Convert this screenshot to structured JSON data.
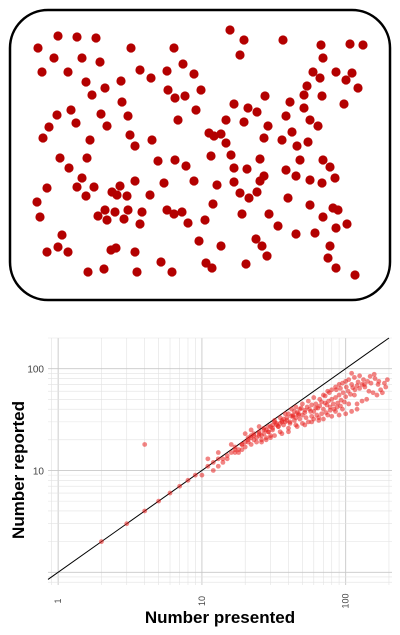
{
  "stimulus": {
    "dot_color": "#b30000",
    "border_color": "#000000",
    "dots": [
      [
        38,
        48
      ],
      [
        58,
        36
      ],
      [
        77,
        37
      ],
      [
        96,
        38
      ],
      [
        82,
        58
      ],
      [
        54,
        58
      ],
      [
        42,
        72
      ],
      [
        68,
        72
      ],
      [
        100,
        62
      ],
      [
        131,
        48
      ],
      [
        174,
        48
      ],
      [
        183,
        64
      ],
      [
        194,
        74
      ],
      [
        167,
        71
      ],
      [
        151,
        78
      ],
      [
        140,
        70
      ],
      [
        121,
        81
      ],
      [
        105,
        88
      ],
      [
        92,
        95
      ],
      [
        86,
        82
      ],
      [
        71,
        110
      ],
      [
        57,
        115
      ],
      [
        49,
        127
      ],
      [
        76,
        123
      ],
      [
        101,
        114
      ],
      [
        107,
        126
      ],
      [
        43,
        138
      ],
      [
        122,
        102
      ],
      [
        128,
        116
      ],
      [
        130,
        135
      ],
      [
        135,
        146
      ],
      [
        152,
        140
      ],
      [
        178,
        120
      ],
      [
        201,
        90
      ],
      [
        185,
        96
      ],
      [
        196,
        110
      ],
      [
        175,
        98
      ],
      [
        168,
        90
      ],
      [
        230,
        30
      ],
      [
        244,
        40
      ],
      [
        240,
        55
      ],
      [
        283,
        40
      ],
      [
        321,
        45
      ],
      [
        323,
        58
      ],
      [
        363,
        45
      ],
      [
        350,
        44
      ],
      [
        313,
        72
      ],
      [
        307,
        86
      ],
      [
        320,
        78
      ],
      [
        336,
        72
      ],
      [
        322,
        96
      ],
      [
        304,
        108
      ],
      [
        310,
        120
      ],
      [
        290,
        102
      ],
      [
        286,
        116
      ],
      [
        265,
        96
      ],
      [
        257,
        112
      ],
      [
        248,
        108
      ],
      [
        234,
        104
      ],
      [
        226,
        120
      ],
      [
        244,
        122
      ],
      [
        268,
        126
      ],
      [
        304,
        95
      ],
      [
        344,
        104
      ],
      [
        358,
        88
      ],
      [
        352,
        73
      ],
      [
        346,
        80
      ],
      [
        318,
        126
      ],
      [
        308,
        142
      ],
      [
        297,
        146
      ],
      [
        292,
        132
      ],
      [
        282,
        140
      ],
      [
        286,
        170
      ],
      [
        300,
        160
      ],
      [
        323,
        160
      ],
      [
        330,
        167
      ],
      [
        335,
        178
      ],
      [
        322,
        183
      ],
      [
        310,
        180
      ],
      [
        296,
        176
      ],
      [
        288,
        198
      ],
      [
        310,
        205
      ],
      [
        323,
        217
      ],
      [
        338,
        210
      ],
      [
        347,
        224
      ],
      [
        336,
        228
      ],
      [
        330,
        246
      ],
      [
        328,
        258
      ],
      [
        336,
        268
      ],
      [
        355,
        275
      ],
      [
        90,
        140
      ],
      [
        87,
        158
      ],
      [
        60,
        158
      ],
      [
        69,
        168
      ],
      [
        82,
        178
      ],
      [
        94,
        187
      ],
      [
        86,
        196
      ],
      [
        77,
        187
      ],
      [
        47,
        188
      ],
      [
        37,
        202
      ],
      [
        40,
        217
      ],
      [
        62,
        235
      ],
      [
        58,
        247
      ],
      [
        47,
        252
      ],
      [
        68,
        252
      ],
      [
        98,
        216
      ],
      [
        105,
        210
      ],
      [
        112,
        192
      ],
      [
        120,
        186
      ],
      [
        127,
        196
      ],
      [
        135,
        181
      ],
      [
        150,
        195
      ],
      [
        164,
        183
      ],
      [
        158,
        161
      ],
      [
        175,
        160
      ],
      [
        186,
        166
      ],
      [
        194,
        181
      ],
      [
        182,
        212
      ],
      [
        188,
        223
      ],
      [
        205,
        220
      ],
      [
        213,
        204
      ],
      [
        217,
        185
      ],
      [
        234,
        182
      ],
      [
        240,
        193
      ],
      [
        257,
        192
      ],
      [
        260,
        181
      ],
      [
        264,
        176
      ],
      [
        249,
        198
      ],
      [
        242,
        214
      ],
      [
        269,
        214
      ],
      [
        278,
        226
      ],
      [
        256,
        239
      ],
      [
        262,
        246
      ],
      [
        246,
        264
      ],
      [
        267,
        256
      ],
      [
        296,
        234
      ],
      [
        315,
        233
      ],
      [
        333,
        208
      ],
      [
        231,
        155
      ],
      [
        247,
        169
      ],
      [
        260,
        159
      ],
      [
        234,
        168
      ],
      [
        211,
        156
      ],
      [
        214,
        136
      ],
      [
        209,
        133
      ],
      [
        221,
        134
      ],
      [
        226,
        143
      ],
      [
        167,
        210
      ],
      [
        174,
        214
      ],
      [
        142,
        212
      ],
      [
        128,
        210
      ],
      [
        124,
        219
      ],
      [
        107,
        220
      ],
      [
        115,
        212
      ],
      [
        111,
        250
      ],
      [
        116,
        248
      ],
      [
        88,
        272
      ],
      [
        104,
        269
      ],
      [
        135,
        252
      ],
      [
        137,
        272
      ],
      [
        161,
        262
      ],
      [
        172,
        272
      ],
      [
        199,
        241
      ],
      [
        206,
        263
      ],
      [
        212,
        268
      ],
      [
        140,
        224
      ],
      [
        117,
        195
      ],
      [
        264,
        138
      ],
      [
        221,
        246
      ]
    ]
  },
  "chart_data": {
    "type": "scatter",
    "title": "",
    "xlabel": "Number presented",
    "ylabel": "Number reported",
    "x_scale": "log",
    "y_scale": "log",
    "xlim": [
      0.85,
      210
    ],
    "ylim": [
      0.75,
      200
    ],
    "x_tick_labels": [
      "1",
      "10",
      "100"
    ],
    "y_tick_labels": [
      "10",
      "100"
    ],
    "reference_line": "y = x",
    "grid": true,
    "point_color": "#e8211f",
    "line_color": "#000000",
    "series": [
      {
        "values": [
          [
            2,
            2
          ],
          [
            3,
            3
          ],
          [
            4,
            4
          ],
          [
            5,
            5
          ],
          [
            6,
            6
          ],
          [
            4,
            18
          ],
          [
            7,
            7
          ],
          [
            8,
            8
          ],
          [
            9,
            9
          ],
          [
            10,
            9
          ],
          [
            11,
            11
          ],
          [
            12,
            12
          ],
          [
            11,
            13
          ],
          [
            12,
            10
          ],
          [
            13,
            13
          ],
          [
            14,
            12
          ],
          [
            13,
            15
          ],
          [
            15,
            14
          ],
          [
            16,
            15
          ],
          [
            17,
            17
          ],
          [
            18,
            16
          ],
          [
            16,
            18
          ],
          [
            19,
            18
          ],
          [
            20,
            17
          ],
          [
            21,
            20
          ],
          [
            20,
            23
          ],
          [
            22,
            21
          ],
          [
            23,
            22
          ],
          [
            24,
            21
          ],
          [
            25,
            23
          ],
          [
            22,
            25
          ],
          [
            26,
            22
          ],
          [
            27,
            26
          ],
          [
            28,
            25
          ],
          [
            29,
            24
          ],
          [
            30,
            27
          ],
          [
            25,
            27
          ],
          [
            31,
            26
          ],
          [
            32,
            30
          ],
          [
            33,
            28
          ],
          [
            34,
            27
          ],
          [
            35,
            29
          ],
          [
            36,
            31
          ],
          [
            37,
            32
          ],
          [
            38,
            30
          ],
          [
            39,
            33
          ],
          [
            40,
            36
          ],
          [
            41,
            30
          ],
          [
            42,
            34
          ],
          [
            43,
            35
          ],
          [
            44,
            38
          ],
          [
            45,
            33
          ],
          [
            46,
            37
          ],
          [
            47,
            36
          ],
          [
            48,
            40
          ],
          [
            49,
            41
          ],
          [
            50,
            35
          ],
          [
            52,
            39
          ],
          [
            54,
            42
          ],
          [
            56,
            40
          ],
          [
            58,
            44
          ],
          [
            60,
            38
          ],
          [
            62,
            45
          ],
          [
            64,
            41
          ],
          [
            66,
            43
          ],
          [
            68,
            47
          ],
          [
            70,
            40
          ],
          [
            72,
            46
          ],
          [
            74,
            44
          ],
          [
            76,
            48
          ],
          [
            78,
            42
          ],
          [
            80,
            50
          ],
          [
            82,
            45
          ],
          [
            85,
            52
          ],
          [
            88,
            46
          ],
          [
            90,
            55
          ],
          [
            93,
            49
          ],
          [
            96,
            58
          ],
          [
            100,
            53
          ],
          [
            104,
            60
          ],
          [
            108,
            56
          ],
          [
            112,
            65
          ],
          [
            116,
            62
          ],
          [
            120,
            68
          ],
          [
            125,
            64
          ],
          [
            130,
            70
          ],
          [
            136,
            66
          ],
          [
            142,
            75
          ],
          [
            150,
            72
          ],
          [
            160,
            80
          ],
          [
            170,
            75
          ],
          [
            110,
            90
          ],
          [
            100,
            75
          ],
          [
            95,
            40
          ],
          [
            85,
            38
          ],
          [
            75,
            35
          ],
          [
            65,
            33
          ],
          [
            60,
            32
          ],
          [
            55,
            30
          ],
          [
            50,
            29
          ],
          [
            45,
            28
          ],
          [
            40,
            26
          ],
          [
            35,
            24
          ],
          [
            30,
            22
          ],
          [
            28,
            21
          ],
          [
            26,
            20
          ],
          [
            24,
            19
          ],
          [
            22,
            18
          ],
          [
            20,
            19
          ],
          [
            19,
            16
          ],
          [
            18,
            15
          ],
          [
            17,
            15
          ],
          [
            15,
            13
          ],
          [
            14,
            13
          ],
          [
            13,
            11
          ],
          [
            55,
            48
          ],
          [
            60,
            52
          ],
          [
            50,
            45
          ],
          [
            45,
            42
          ],
          [
            42,
            40
          ],
          [
            38,
            36
          ],
          [
            35,
            33
          ],
          [
            32,
            31
          ],
          [
            70,
            55
          ],
          [
            75,
            60
          ],
          [
            80,
            62
          ],
          [
            85,
            66
          ],
          [
            90,
            70
          ],
          [
            95,
            72
          ],
          [
            105,
            78
          ],
          [
            115,
            82
          ],
          [
            125,
            85
          ],
          [
            135,
            70
          ],
          [
            145,
            60
          ],
          [
            155,
            58
          ],
          [
            165,
            55
          ],
          [
            175,
            62
          ],
          [
            180,
            58
          ],
          [
            190,
            66
          ],
          [
            140,
            50
          ],
          [
            130,
            48
          ],
          [
            120,
            45
          ],
          [
            115,
            55
          ],
          [
            105,
            45
          ],
          [
            98,
            47
          ],
          [
            92,
            43
          ],
          [
            87,
            42
          ],
          [
            83,
            40
          ],
          [
            78,
            39
          ],
          [
            73,
            37
          ],
          [
            68,
            36
          ],
          [
            63,
            35
          ],
          [
            58,
            34
          ],
          [
            53,
            33
          ],
          [
            48,
            32
          ],
          [
            44,
            31
          ],
          [
            41,
            29
          ],
          [
            37,
            28
          ],
          [
            34,
            27
          ],
          [
            31,
            25
          ],
          [
            29,
            24
          ],
          [
            27,
            23
          ],
          [
            25,
            22
          ],
          [
            23,
            20
          ],
          [
            21,
            19
          ],
          [
            19,
            18
          ],
          [
            17,
            16
          ],
          [
            66,
            50
          ],
          [
            72,
            54
          ],
          [
            77,
            58
          ],
          [
            86,
            62
          ],
          [
            92,
            64
          ],
          [
            101,
            66
          ],
          [
            110,
            70
          ],
          [
            122,
            74
          ],
          [
            133,
            78
          ],
          [
            148,
            84
          ],
          [
            158,
            88
          ],
          [
            168,
            70
          ],
          [
            186,
            72
          ],
          [
            195,
            78
          ],
          [
            62,
            41
          ],
          [
            57,
            38
          ],
          [
            52,
            37
          ],
          [
            47,
            35
          ],
          [
            43,
            34
          ],
          [
            39,
            31
          ],
          [
            36,
            30
          ],
          [
            33,
            29
          ],
          [
            31,
            28
          ],
          [
            29,
            27
          ],
          [
            27,
            25
          ],
          [
            25,
            24
          ],
          [
            23,
            23
          ],
          [
            22,
            22
          ],
          [
            21,
            21
          ],
          [
            120,
            40
          ],
          [
            110,
            38
          ],
          [
            100,
            36
          ],
          [
            90,
            35
          ],
          [
            80,
            34
          ],
          [
            70,
            32
          ],
          [
            65,
            31
          ],
          [
            58,
            30
          ],
          [
            52,
            28
          ],
          [
            46,
            27
          ],
          [
            40,
            24
          ],
          [
            36,
            23
          ],
          [
            32,
            22
          ],
          [
            30,
            21
          ],
          [
            28,
            20
          ],
          [
            26,
            19
          ]
        ]
      }
    ]
  }
}
